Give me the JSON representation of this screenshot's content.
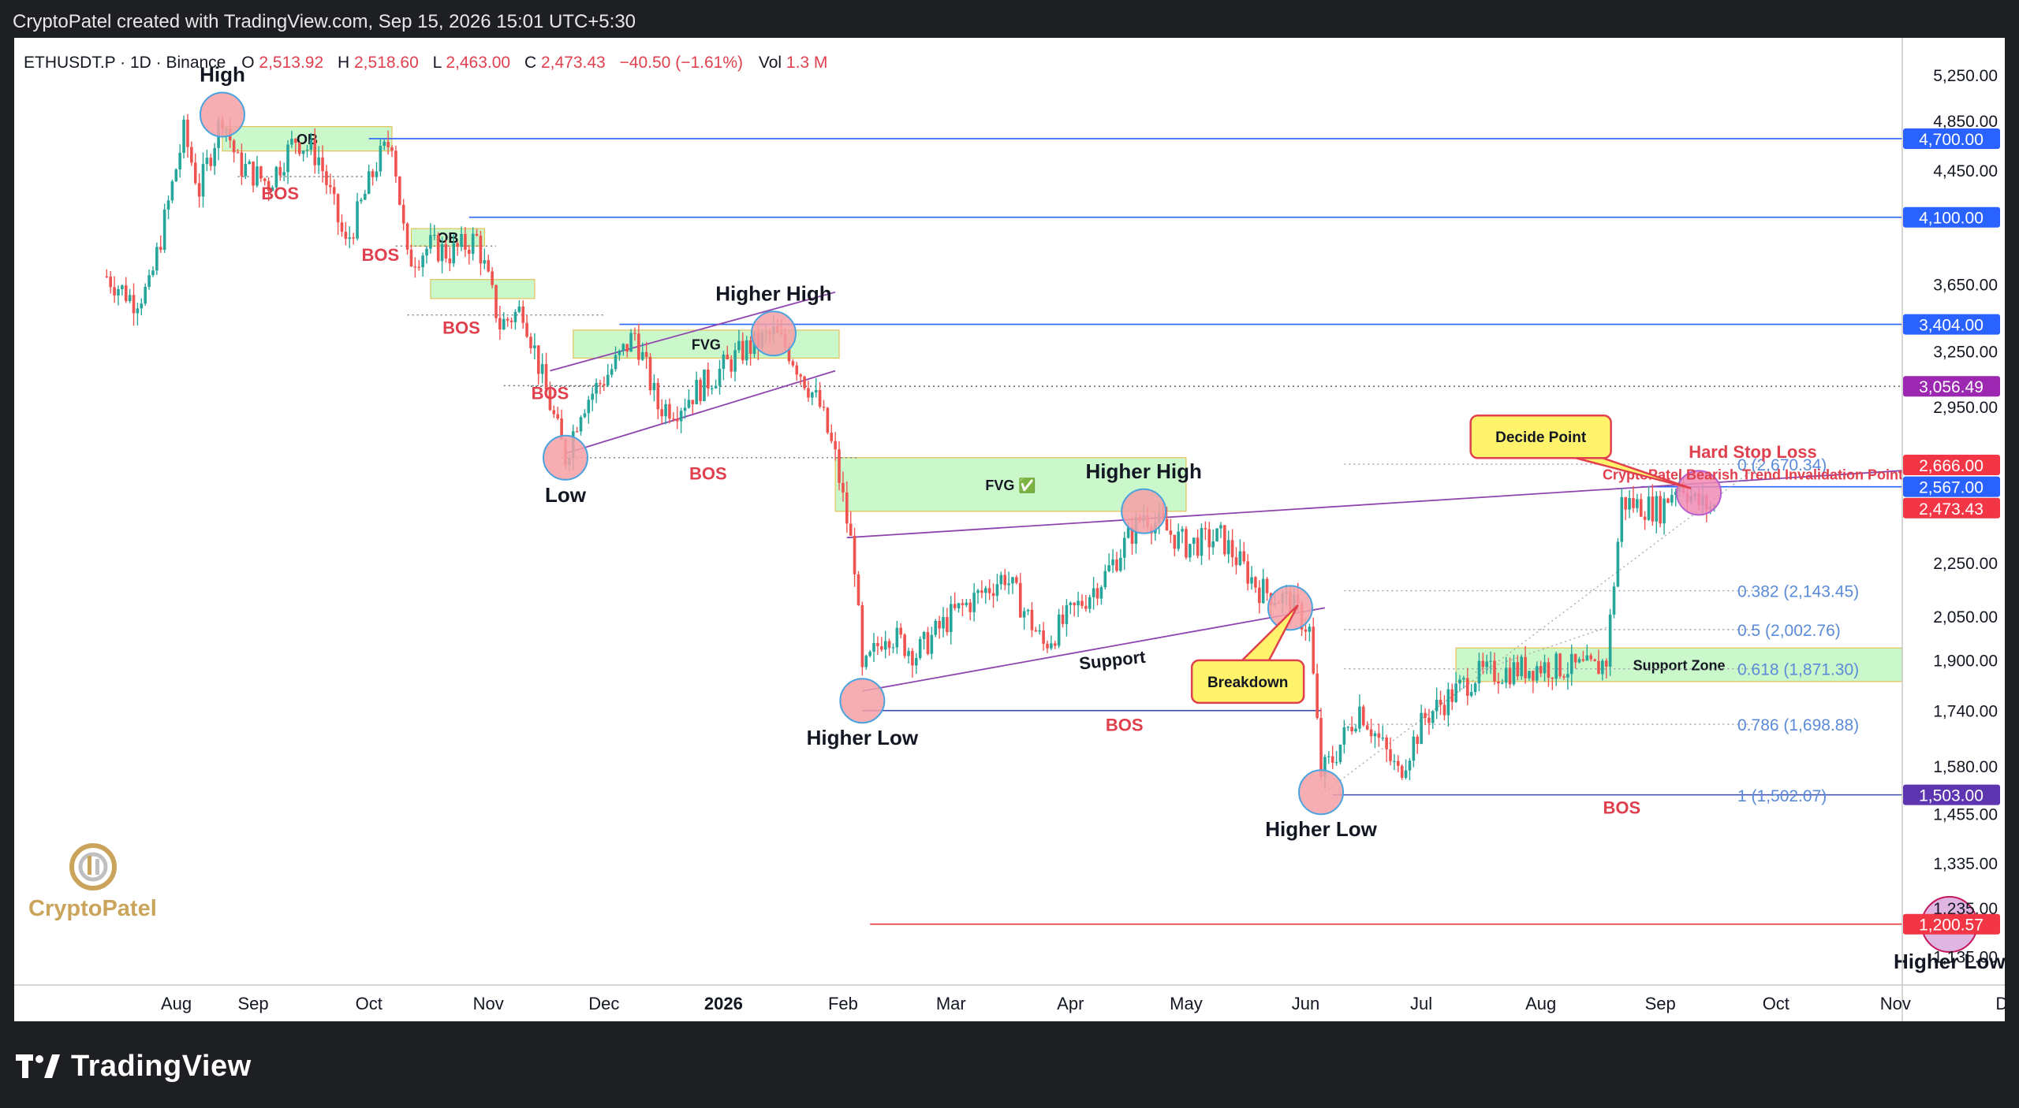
{
  "header": {
    "caption": "CryptoPatel created with TradingView.com, Sep 15, 2026 15:01 UTC+5:30"
  },
  "legend": {
    "symbol": "ETHUSDT.P · 1D · Binance",
    "o_label": "O",
    "o_value": "2,513.92",
    "h_label": "H",
    "h_value": "2,518.60",
    "l_label": "L",
    "l_value": "2,463.00",
    "c_label": "C",
    "c_value": "2,473.43",
    "change": "−40.50 (−1.61%)",
    "vol_label": "Vol",
    "vol_value": "1.3 M"
  },
  "footer": {
    "brand": "TradingView"
  },
  "watermark": {
    "text": "CryptoPatel"
  },
  "colors": {
    "up": "#26a69a",
    "down": "#ef5350",
    "blue_line": "#2962ff",
    "purple": "#7b3fbf",
    "red_text": "#e0404e",
    "zone_green": "#b9f6b9",
    "fib": "#5b8bd8"
  },
  "chart_data": {
    "type": "candlestick",
    "scale": "log",
    "ylim": [
      1080,
      5600
    ],
    "x_ticks": [
      "Aug",
      "Sep",
      "Oct",
      "Nov",
      "Dec",
      "2026",
      "Feb",
      "Mar",
      "Apr",
      "May",
      "Jun",
      "Jul",
      "Aug",
      "Sep",
      "Oct",
      "Nov",
      "Dec"
    ],
    "y_ticks": [
      "5,250.00",
      "4,850.00",
      "4,450.00",
      "3,650.00",
      "3,250.00",
      "2,950.00",
      "2,250.00",
      "2,050.00",
      "1,900.00",
      "1,740.00",
      "1,580.00",
      "1,455.00",
      "1,335.00",
      "1,235.00",
      "1,135.00"
    ],
    "y_tick_values": [
      5250,
      4850,
      4450,
      3650,
      3250,
      2950,
      2250,
      2050,
      1900,
      1740,
      1580,
      1455,
      1335,
      1235,
      1135
    ],
    "price_tags": [
      {
        "label": "4,700.00",
        "value": 4700,
        "color": "#2962ff"
      },
      {
        "label": "4,100.00",
        "value": 4100,
        "color": "#2962ff"
      },
      {
        "label": "3,404.00",
        "value": 3404,
        "color": "#2962ff"
      },
      {
        "label": "3,056.49",
        "value": 3056.49,
        "color": "#9c27b0"
      },
      {
        "label": "2,666.00",
        "value": 2666,
        "color": "#f23645"
      },
      {
        "label": "2,567.00",
        "value": 2567,
        "color": "#2962ff"
      },
      {
        "label": "2,473.43",
        "value": 2473.43,
        "color": "#f23645"
      },
      {
        "label": "1,503.00",
        "value": 1503,
        "color": "#5e35b1"
      },
      {
        "label": "1,200.57",
        "value": 1200.57,
        "color": "#f23645"
      }
    ],
    "price_path": [
      [
        "2025-07-25",
        3700
      ],
      [
        "2025-08-01",
        3550
      ],
      [
        "2025-08-05",
        3620
      ],
      [
        "2025-08-10",
        4200
      ],
      [
        "2025-08-14",
        4750
      ],
      [
        "2025-08-18",
        4300
      ],
      [
        "2025-08-24",
        4900
      ],
      [
        "2025-08-28",
        4500
      ],
      [
        "2025-09-05",
        4350
      ],
      [
        "2025-09-12",
        4700
      ],
      [
        "2025-09-18",
        4550
      ],
      [
        "2025-09-25",
        3900
      ],
      [
        "2025-10-03",
        4500
      ],
      [
        "2025-10-07",
        4700
      ],
      [
        "2025-10-11",
        3800
      ],
      [
        "2025-10-17",
        3900
      ],
      [
        "2025-10-22",
        3850
      ],
      [
        "2025-10-29",
        3950
      ],
      [
        "2025-11-04",
        3400
      ],
      [
        "2025-11-10",
        3500
      ],
      [
        "2025-11-15",
        3100
      ],
      [
        "2025-11-21",
        2700
      ],
      [
        "2025-11-25",
        2950
      ],
      [
        "2025-12-03",
        3150
      ],
      [
        "2025-12-09",
        3350
      ],
      [
        "2025-12-15",
        2950
      ],
      [
        "2025-12-20",
        2950
      ],
      [
        "2026-01-06",
        3250
      ],
      [
        "2026-01-14",
        3350
      ],
      [
        "2026-01-18",
        3250
      ],
      [
        "2026-01-26",
        2950
      ],
      [
        "2026-01-30",
        2700
      ],
      [
        "2026-02-04",
        2250
      ],
      [
        "2026-02-06",
        1850
      ],
      [
        "2026-02-12",
        2000
      ],
      [
        "2026-02-20",
        1920
      ],
      [
        "2026-03-01",
        2050
      ],
      [
        "2026-03-15",
        2200
      ],
      [
        "2026-03-25",
        1950
      ],
      [
        "2026-04-10",
        2200
      ],
      [
        "2026-04-20",
        2450
      ],
      [
        "2026-05-01",
        2320
      ],
      [
        "2026-05-10",
        2350
      ],
      [
        "2026-05-20",
        2150
      ],
      [
        "2026-05-28",
        2100
      ],
      [
        "2026-06-02",
        2000
      ],
      [
        "2026-06-05",
        1560
      ],
      [
        "2026-06-08",
        1600
      ],
      [
        "2026-06-15",
        1750
      ],
      [
        "2026-06-25",
        1560
      ],
      [
        "2026-07-02",
        1720
      ],
      [
        "2026-07-15",
        1850
      ],
      [
        "2026-08-01",
        1880
      ],
      [
        "2026-08-15",
        1870
      ],
      [
        "2026-08-18",
        1900
      ],
      [
        "2026-08-22",
        2500
      ],
      [
        "2026-09-01",
        2470
      ],
      [
        "2026-09-06",
        2600
      ],
      [
        "2026-09-10",
        2500
      ],
      [
        "2026-09-15",
        2473.43
      ]
    ],
    "horizontal_lines": [
      {
        "value": 4700,
        "from": "2025-10-01",
        "to": "2026-12-31",
        "style": "solid",
        "color": "#2962ff"
      },
      {
        "value": 4100,
        "from": "2025-10-27",
        "to": "2026-12-31",
        "style": "solid",
        "color": "#2962ff"
      },
      {
        "value": 3404,
        "from": "2025-12-05",
        "to": "2026-12-31",
        "style": "solid",
        "color": "#2962ff"
      },
      {
        "value": 3056.49,
        "from": "2025-11-12",
        "to": "2026-12-31",
        "style": "dotted",
        "color": "#555555"
      },
      {
        "value": 2567,
        "from": "2026-08-27",
        "to": "2026-12-31",
        "style": "solid",
        "color": "#2962ff"
      },
      {
        "value": 1503,
        "from": "2026-06-08",
        "to": "2026-12-31",
        "style": "solid",
        "color": "#3949ab"
      },
      {
        "value": 1200.57,
        "from": "2026-02-08",
        "to": "2026-12-31",
        "style": "solid",
        "color": "#e53935"
      },
      {
        "value": 1740,
        "from": "2026-02-06",
        "to": "2026-06-05",
        "style": "solid",
        "color": "#3949ab"
      },
      {
        "value": 2670,
        "from": "2026-06-11",
        "to": "2026-09-27",
        "style": "dotted",
        "color": "#9aa0a6"
      },
      {
        "value": 2143,
        "from": "2026-06-11",
        "to": "2026-09-27",
        "style": "dotted",
        "color": "#9aa0a6"
      },
      {
        "value": 2003,
        "from": "2026-06-11",
        "to": "2026-09-27",
        "style": "dotted",
        "color": "#9aa0a6"
      },
      {
        "value": 1871,
        "from": "2026-06-11",
        "to": "2026-09-27",
        "style": "dotted",
        "color": "#9aa0a6"
      },
      {
        "value": 1699,
        "from": "2026-06-11",
        "to": "2026-09-27",
        "style": "dotted",
        "color": "#9aa0a6"
      },
      {
        "value": 4400,
        "from": "2025-08-28",
        "to": "2025-09-30",
        "style": "dotted",
        "color": "#777777"
      },
      {
        "value": 3900,
        "from": "2025-10-08",
        "to": "2025-11-03",
        "style": "dotted",
        "color": "#777777"
      },
      {
        "value": 3460,
        "from": "2025-10-11",
        "to": "2025-12-01",
        "style": "dotted",
        "color": "#777777"
      },
      {
        "value": 3060,
        "from": "2025-11-05",
        "to": "2025-12-01",
        "style": "dotted",
        "color": "#777777"
      },
      {
        "value": 2700,
        "from": "2025-11-20",
        "to": "2026-02-05",
        "style": "dotted",
        "color": "#777777"
      }
    ],
    "trendlines": [
      {
        "from": [
          "2025-11-21",
          2720
        ],
        "to": [
          "2026-01-30",
          3140
        ],
        "color": "#8e44ad"
      },
      {
        "from": [
          "2025-11-17",
          3140
        ],
        "to": [
          "2026-01-30",
          3600
        ],
        "color": "#8e44ad"
      },
      {
        "from": [
          "2026-02-02",
          2350
        ],
        "to": [
          "2026-12-31",
          2640
        ],
        "color": "#8e44ad"
      },
      {
        "from": [
          "2026-02-06",
          1800
        ],
        "to": [
          "2026-06-06",
          2080
        ],
        "color": "#8e44ad"
      },
      {
        "from": [
          "2026-06-05",
          1503
        ],
        "to": [
          "2026-09-27",
          2670
        ],
        "color": "#aaaaaa",
        "style": "dotted"
      },
      {
        "from": [
          "2026-07-15",
          1860
        ],
        "to": [
          "2026-08-18",
          2010
        ],
        "color": "#aaaaaa",
        "style": "dotted"
      }
    ],
    "zones": [
      {
        "label": "OB",
        "from": "2025-08-24",
        "to": "2025-10-07",
        "low": 4600,
        "high": 4800
      },
      {
        "label": "OB",
        "from": "2025-10-12",
        "to": "2025-10-31",
        "low": 3900,
        "high": 4020
      },
      {
        "label": "",
        "from": "2025-10-17",
        "to": "2025-11-13",
        "low": 3560,
        "high": 3680
      },
      {
        "label": "FVG",
        "from": "2025-11-23",
        "to": "2026-01-31",
        "low": 3210,
        "high": 3370
      },
      {
        "label": "FVG ✅",
        "from": "2026-01-30",
        "to": "2026-05-01",
        "low": 2460,
        "high": 2700
      },
      {
        "label": "Support Zone",
        "from": "2026-07-10",
        "to": "2026-12-31",
        "low": 1830,
        "high": 1940
      }
    ],
    "fibonacci": [
      {
        "label": "0 (2,670.34)",
        "value": 2670.34
      },
      {
        "label": "0.382 (2,143.45)",
        "value": 2143.45
      },
      {
        "label": "0.5 (2,002.76)",
        "value": 2002.76
      },
      {
        "label": "0.618 (1,871.30)",
        "value": 1871.3
      },
      {
        "label": "0.786 (1,698.88)",
        "value": 1698.88
      },
      {
        "label": "1 (1,502.07)",
        "value": 1502.07
      }
    ],
    "pivots": [
      {
        "date": "2025-08-24",
        "value": 4900,
        "color": "red",
        "label": "High",
        "label_pos": "above"
      },
      {
        "date": "2025-11-21",
        "value": 2700,
        "color": "red",
        "label": "Low",
        "label_pos": "below"
      },
      {
        "date": "2026-01-14",
        "value": 3350,
        "color": "red",
        "label": "Higher High",
        "label_pos": "above"
      },
      {
        "date": "2026-02-06",
        "value": 1770,
        "color": "red",
        "label": "Higher Low",
        "label_pos": "below"
      },
      {
        "date": "2026-04-20",
        "value": 2460,
        "color": "red",
        "label": "Higher High",
        "label_pos": "above"
      },
      {
        "date": "2026-05-28",
        "value": 2080,
        "color": "red",
        "label": "",
        "label_pos": "above"
      },
      {
        "date": "2026-06-05",
        "value": 1510,
        "color": "red",
        "label": "Higher Low",
        "label_pos": "below"
      },
      {
        "date": "2026-09-11",
        "value": 2540,
        "color": "pink",
        "label": "",
        "label_pos": "above"
      },
      {
        "date": "2026-11-15",
        "value": 1200,
        "color": "purple",
        "label": "Higher Low",
        "label_pos": "below"
      }
    ],
    "annotations": [
      {
        "text": "BOS",
        "date": "2025-09-08",
        "value": 4230,
        "color": "red"
      },
      {
        "text": "BOS",
        "date": "2025-10-04",
        "value": 3800,
        "color": "red"
      },
      {
        "text": "BOS",
        "date": "2025-10-25",
        "value": 3350,
        "color": "red"
      },
      {
        "text": "BOS",
        "date": "2025-11-17",
        "value": 2990,
        "color": "red"
      },
      {
        "text": "BOS",
        "date": "2025-12-28",
        "value": 2600,
        "color": "red"
      },
      {
        "text": "BOS",
        "date": "2026-04-15",
        "value": 1680,
        "color": "red"
      },
      {
        "text": "BOS",
        "date": "2026-08-22",
        "value": 1455,
        "color": "red"
      },
      {
        "text": "Support",
        "date": "2026-04-12",
        "value": 1880,
        "color": "black",
        "rotate": -6
      },
      {
        "text": "Hard Stop Loss",
        "date": "2026-09-25",
        "value": 2700,
        "color": "red"
      },
      {
        "text": "CryptoPatel Bearish Trend Invalidation Point",
        "date": "2026-09-25",
        "value": 2600,
        "color": "red"
      }
    ],
    "callouts": [
      {
        "text": "Decide Point",
        "date": "2026-08-01",
        "value": 2800,
        "pointer_date": "2026-09-09",
        "pointer_value": 2560
      },
      {
        "text": "Breakdown",
        "date": "2026-05-17",
        "value": 1830,
        "pointer_date": "2026-05-30",
        "pointer_value": 2090
      }
    ]
  }
}
